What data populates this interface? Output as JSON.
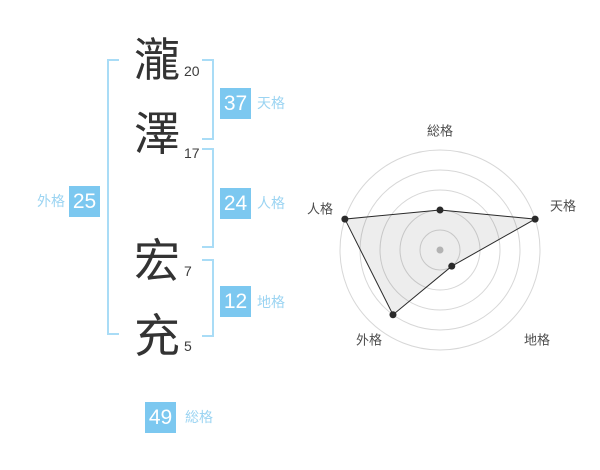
{
  "name_panel": {
    "characters": [
      {
        "char": "瀧",
        "strokes": "20"
      },
      {
        "char": "澤",
        "strokes": "17"
      },
      {
        "char": "宏",
        "strokes": "7"
      },
      {
        "char": "充",
        "strokes": "5"
      }
    ],
    "badges": {
      "tenkaku": {
        "value": "37",
        "label": "天格"
      },
      "jinkaku": {
        "value": "24",
        "label": "人格"
      },
      "chikaku": {
        "value": "12",
        "label": "地格"
      },
      "gaikaku": {
        "value": "25",
        "label": "外格"
      },
      "soukaku": {
        "value": "49",
        "label": "総格"
      }
    }
  },
  "chart_data": {
    "type": "radar",
    "axes": [
      "総格",
      "天格",
      "地格",
      "外格",
      "人格"
    ],
    "values": [
      2,
      5,
      1,
      4,
      5
    ],
    "max": 5,
    "rings": 5,
    "start_angle_deg": 90,
    "direction": "clockwise",
    "grid": "circular",
    "legend": "none",
    "title": ""
  },
  "colors": {
    "badge_blue": "#7cc8f0",
    "bracket_blue": "#a9dcf6",
    "label_blue": "#9bd4f2",
    "ring_gray": "#d7d7d7",
    "axis_label": "#4d4d4d",
    "point_black": "#2a2a2a",
    "polygon_fill": "rgba(0,0,0,0.07)",
    "center_dot": "#b3b3b3",
    "kanji_color": "#333333",
    "strokes_color": "#3c3c3c"
  }
}
